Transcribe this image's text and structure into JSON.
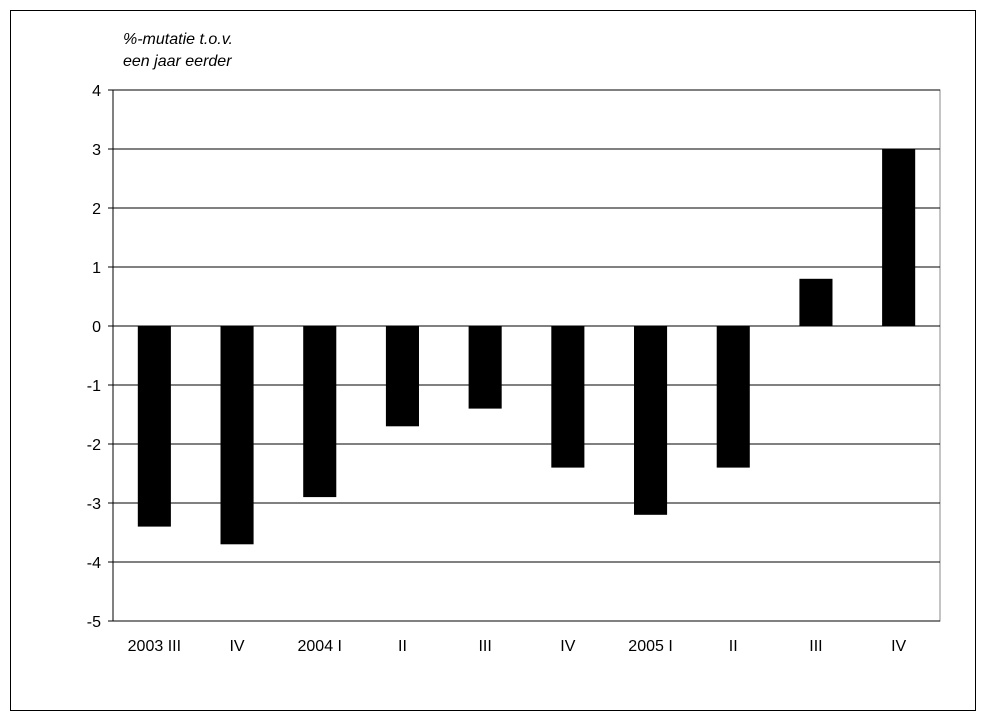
{
  "chart_data": {
    "type": "bar",
    "ylabel_lines": [
      "%-mutatie t.o.v.",
      "een jaar eerder"
    ],
    "categories": [
      "2003 III",
      "IV",
      "2004 I",
      "II",
      "III",
      "IV",
      "2005 I",
      "II",
      "III",
      "IV"
    ],
    "values": [
      -3.4,
      -3.7,
      -2.9,
      -1.7,
      -1.4,
      -2.4,
      -3.2,
      -2.4,
      0.8,
      3.0
    ],
    "ylim": [
      -5,
      4
    ],
    "yticks": [
      "4",
      "3",
      "2",
      "1",
      "0",
      "-1",
      "-2",
      "-3",
      "-4",
      "-5"
    ],
    "grid": true,
    "bar_color": "#000000",
    "grid_color": "#000000"
  }
}
